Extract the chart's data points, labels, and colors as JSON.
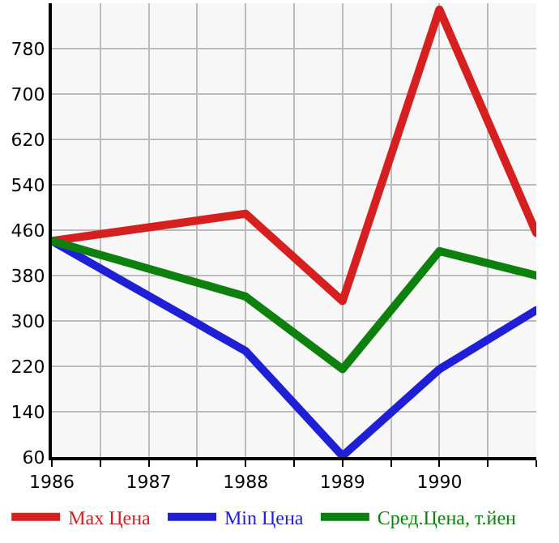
{
  "chart_data": {
    "type": "line",
    "x": [
      1986,
      1988,
      1989,
      1990,
      1991
    ],
    "series": [
      {
        "name": "Max Цена",
        "color": "#d61f1f",
        "values": [
          441,
          489,
          335,
          849,
          455
        ]
      },
      {
        "name": "Min Цена",
        "color": "#1f1fd6",
        "values": [
          441,
          247,
          62,
          215,
          319
        ]
      },
      {
        "name": "Сред.Цена, т.йен",
        "color": "#0e800e",
        "values": [
          441,
          343,
          215,
          423,
          380
        ]
      }
    ],
    "xlim": [
      1986,
      1991
    ],
    "xticks": [
      1986,
      {
        "value": 1986.5,
        "label": null
      },
      1987,
      {
        "value": 1987.5,
        "label": null
      },
      1988,
      {
        "value": 1988.5,
        "label": null
      },
      1989,
      {
        "value": 1989.5,
        "label": null
      },
      1990,
      {
        "value": 1990.5,
        "label": null
      },
      {
        "value": 1991,
        "label": null
      }
    ],
    "ylim": [
      60,
      860
    ],
    "yticks": [
      60,
      140,
      220,
      300,
      380,
      460,
      540,
      620,
      700,
      780
    ],
    "grid": true,
    "legend": "bottom",
    "marker": "none",
    "line_style": "solid"
  }
}
